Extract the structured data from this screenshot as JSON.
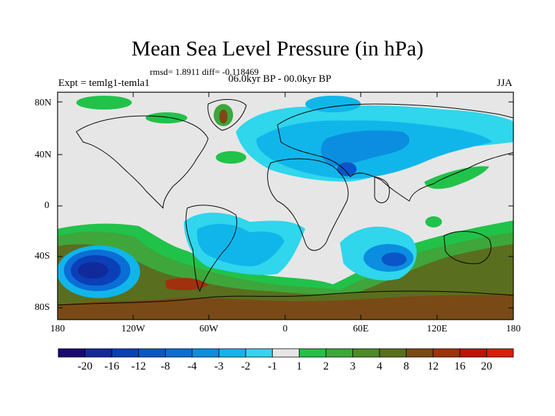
{
  "title": "Mean Sea Level Pressure (in hPa)",
  "stats": "rmsd= 1.8911 diff= -0.118469",
  "timeslice": "06.0kyr BP - 00.0kyr BP",
  "experiment": "Expt = temlg1-temla1",
  "season": "JJA",
  "lat_labels": [
    "80N",
    "40N",
    "0",
    "40S",
    "80S"
  ],
  "lon_labels": [
    "180",
    "120W",
    "60W",
    "0",
    "60E",
    "120E",
    "180"
  ],
  "colorbar": {
    "labels": [
      "-20",
      "-16",
      "-12",
      "-8",
      "-4",
      "-3",
      "-2",
      "-1",
      "1",
      "2",
      "3",
      "4",
      "8",
      "12",
      "16",
      "20"
    ],
    "colors": [
      "#1a0a6e",
      "#102a9c",
      "#0b3fb8",
      "#0a56c8",
      "#0a6ed6",
      "#0b8ee0",
      "#10b6ea",
      "#2fd6ec",
      "#e6e6e6",
      "#21c24a",
      "#3ea63b",
      "#4d8a2a",
      "#5a6e1f",
      "#7a4a16",
      "#a0300e",
      "#c0120a",
      "#dc1c0c"
    ]
  },
  "colors": {
    "land_outline": "#000000",
    "neutral": "#e6e6e6"
  }
}
